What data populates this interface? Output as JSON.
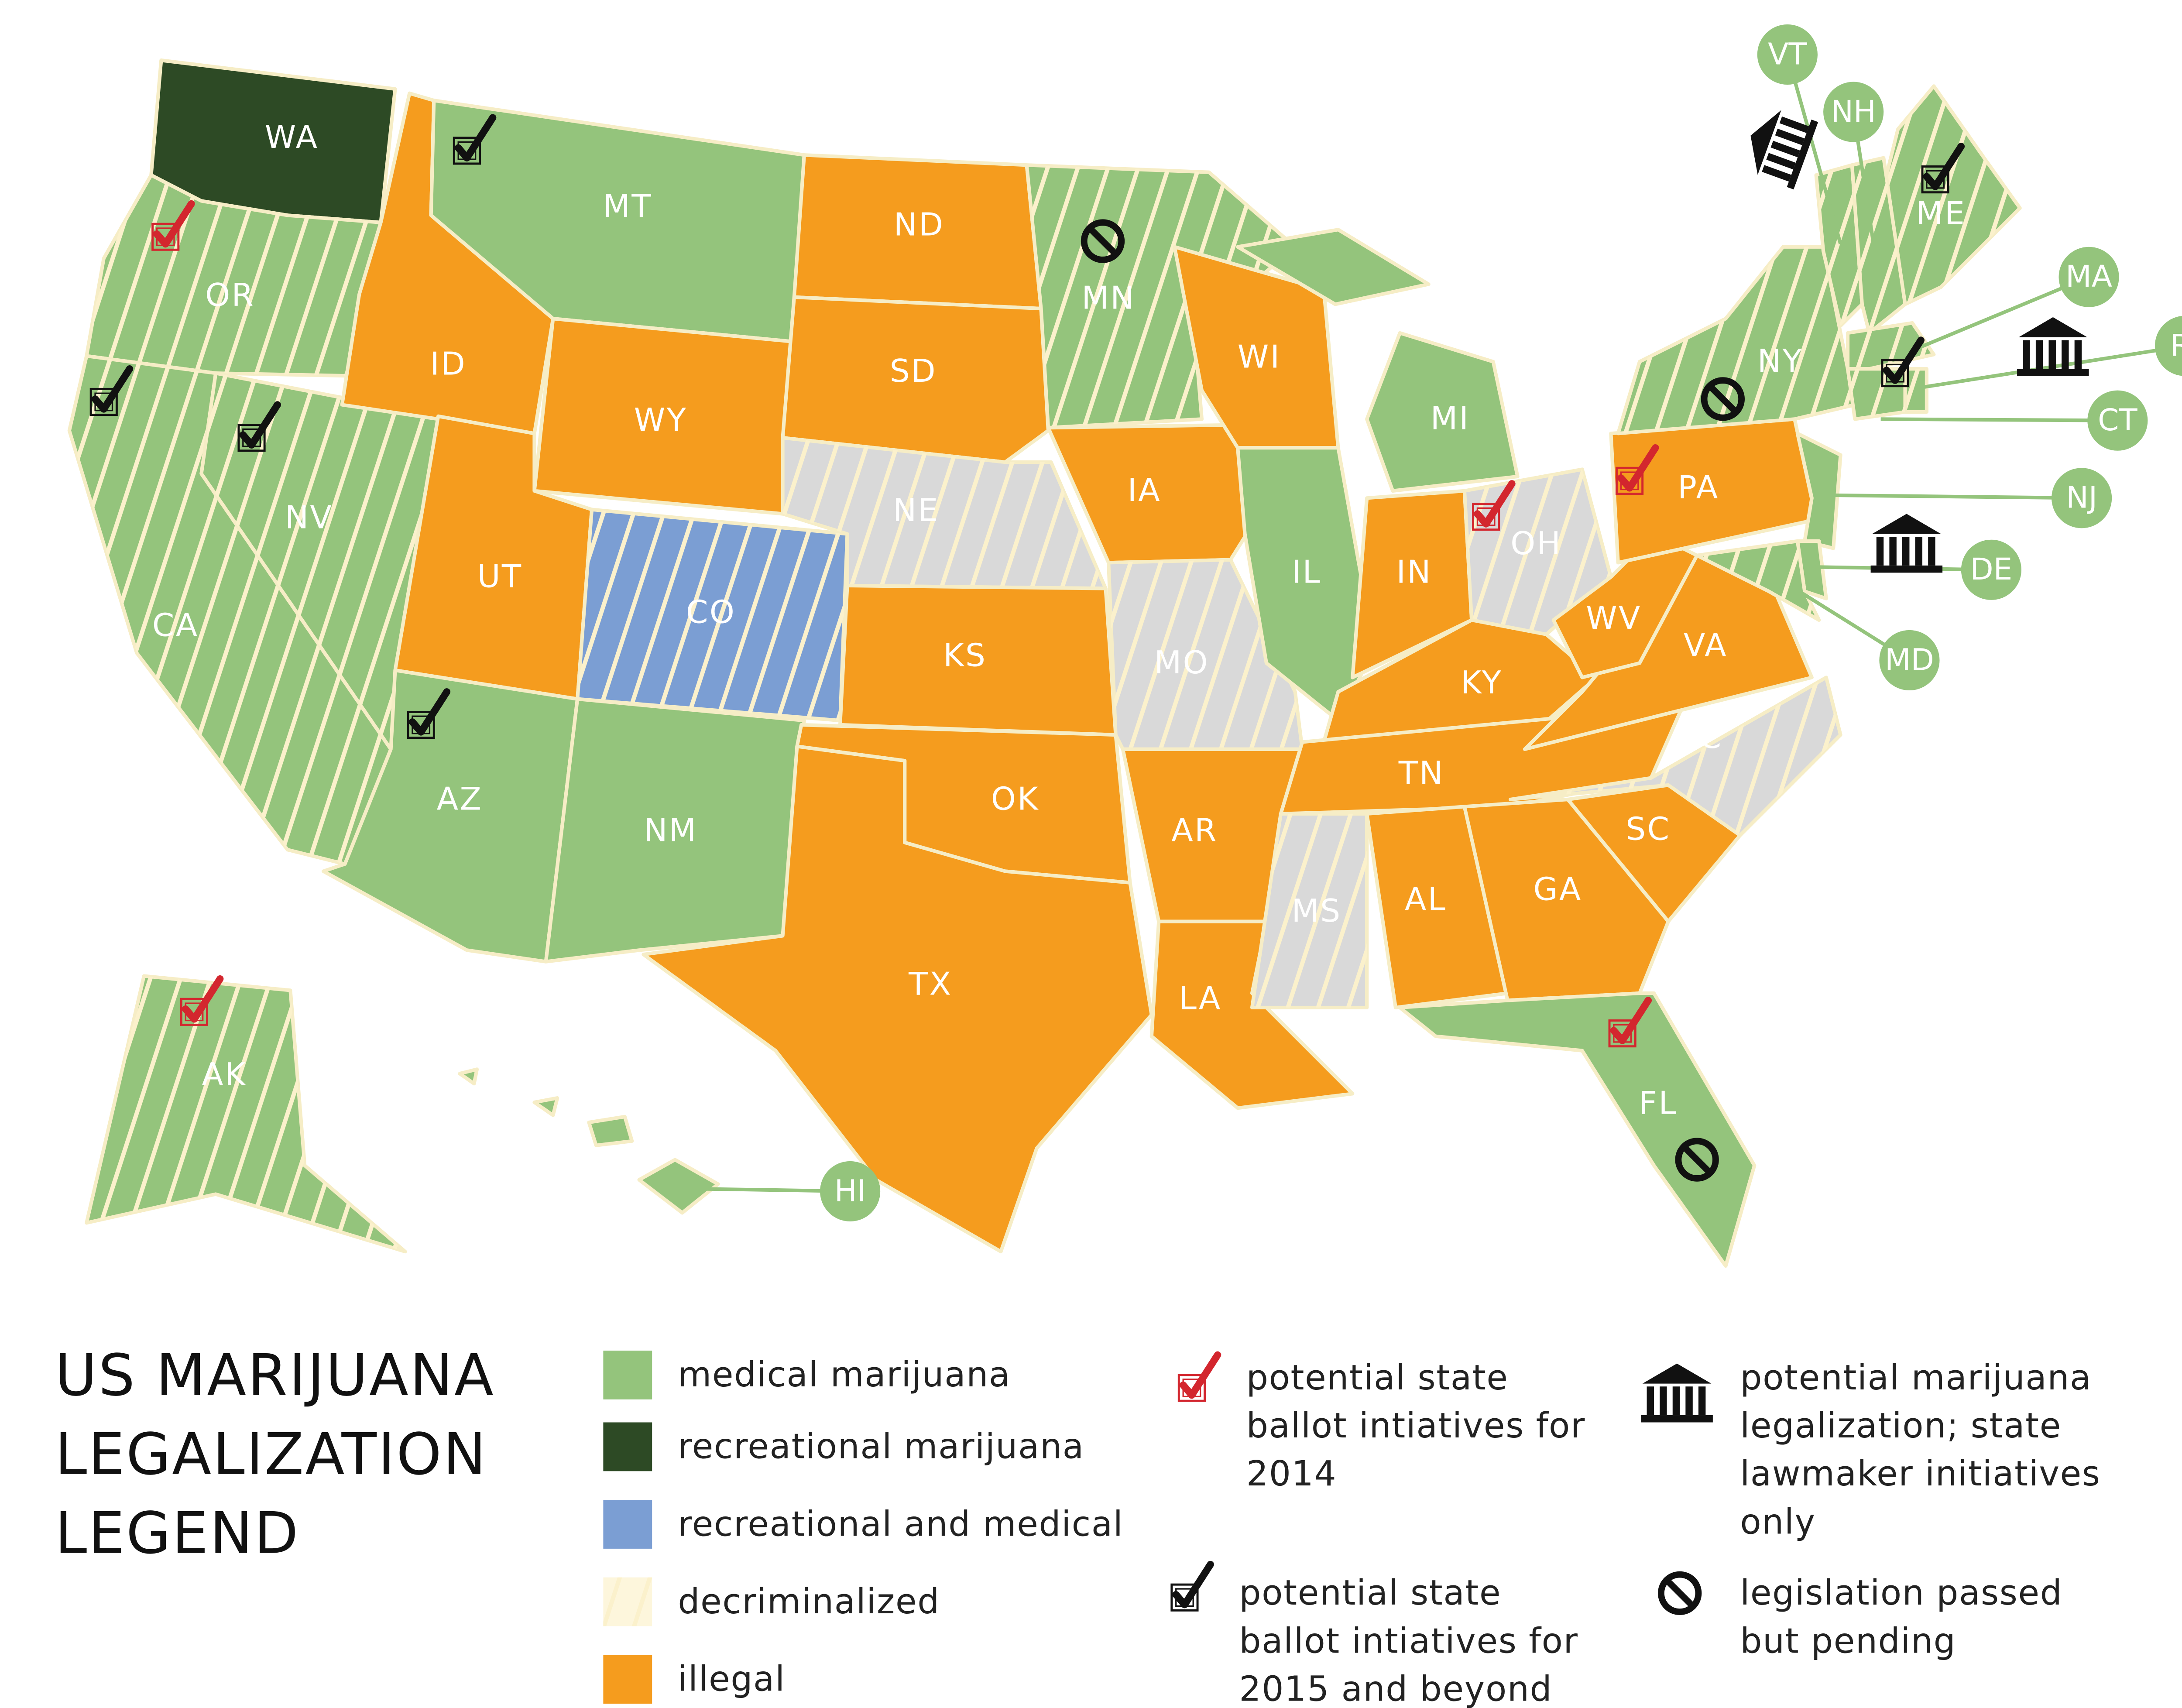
{
  "title_lines": [
    "US MARIJUANA",
    "LEGALIZATION",
    "LEGEND"
  ],
  "legend": {
    "categories": [
      {
        "label": "medical marijuana",
        "color": "#94c47c",
        "decriminalized": false
      },
      {
        "label": "recreational marijuana",
        "color": "#2d4a25",
        "decriminalized": false
      },
      {
        "label": "recreational and medical",
        "color": "#7b9ed3",
        "decriminalized": false
      },
      {
        "label": "decriminalized",
        "color": "#fdf6dc",
        "decriminalized": true
      },
      {
        "label": "illegal",
        "color": "#f59c1e",
        "decriminalized": false
      }
    ],
    "icons": [
      {
        "lines": [
          "potential state",
          "ballot intiatives for",
          "2014"
        ]
      },
      {
        "lines": [
          "potential state",
          "ballot intiatives for",
          "2015 and beyond"
        ]
      },
      {
        "lines": [
          "potential marijuana",
          "legalization; state",
          "lawmaker initiatives",
          "only"
        ]
      },
      {
        "lines": [
          "legislation passed",
          "but pending"
        ]
      }
    ]
  },
  "states": [
    {
      "label": "WA",
      "color": "#2d4a25",
      "decriminalized": false
    },
    {
      "label": "OR",
      "color": "#94c47c",
      "decriminalized": true
    },
    {
      "label": "CA",
      "color": "#94c47c",
      "decriminalized": true
    },
    {
      "label": "NV",
      "color": "#94c47c",
      "decriminalized": true
    },
    {
      "label": "ID",
      "color": "#f59c1e",
      "decriminalized": false
    },
    {
      "label": "MT",
      "color": "#94c47c",
      "decriminalized": false
    },
    {
      "label": "WY",
      "color": "#f59c1e",
      "decriminalized": false
    },
    {
      "label": "UT",
      "color": "#f59c1e",
      "decriminalized": false
    },
    {
      "label": "CO",
      "color": "#7b9ed3",
      "decriminalized": true
    },
    {
      "label": "AZ",
      "color": "#94c47c",
      "decriminalized": false
    },
    {
      "label": "NM",
      "color": "#94c47c",
      "decriminalized": false
    },
    {
      "label": "ND",
      "color": "#f59c1e",
      "decriminalized": false
    },
    {
      "label": "SD",
      "color": "#f59c1e",
      "decriminalized": false
    },
    {
      "label": "NE",
      "color": "#d9d9d9",
      "decriminalized": true
    },
    {
      "label": "KS",
      "color": "#f59c1e",
      "decriminalized": false
    },
    {
      "label": "OK",
      "color": "#f59c1e",
      "decriminalized": false
    },
    {
      "label": "TX",
      "color": "#f59c1e",
      "decriminalized": false
    },
    {
      "label": "MN",
      "color": "#94c47c",
      "decriminalized": true
    },
    {
      "label": "IA",
      "color": "#f59c1e",
      "decriminalized": false
    },
    {
      "label": "MO",
      "color": "#d9d9d9",
      "decriminalized": true
    },
    {
      "label": "AR",
      "color": "#f59c1e",
      "decriminalized": false
    },
    {
      "label": "LA",
      "color": "#f59c1e",
      "decriminalized": false
    },
    {
      "label": "WI",
      "color": "#f59c1e",
      "decriminalized": false
    },
    {
      "label": "IL",
      "color": "#94c47c",
      "decriminalized": false
    },
    {
      "label": "MI",
      "color": "#94c47c",
      "decriminalized": false
    },
    {
      "label": "IN",
      "color": "#f59c1e",
      "decriminalized": false
    },
    {
      "label": "OH",
      "color": "#d9d9d9",
      "decriminalized": true
    },
    {
      "label": "KY",
      "color": "#f59c1e",
      "decriminalized": false
    },
    {
      "label": "TN",
      "color": "#f59c1e",
      "decriminalized": false
    },
    {
      "label": "MS",
      "color": "#d9d9d9",
      "decriminalized": true
    },
    {
      "label": "AL",
      "color": "#f59c1e",
      "decriminalized": false
    },
    {
      "label": "GA",
      "color": "#f59c1e",
      "decriminalized": false
    },
    {
      "label": "FL",
      "color": "#94c47c",
      "decriminalized": false
    },
    {
      "label": "SC",
      "color": "#f59c1e",
      "decriminalized": false
    },
    {
      "label": "NC",
      "color": "#d9d9d9",
      "decriminalized": true
    },
    {
      "label": "VA",
      "color": "#f59c1e",
      "decriminalized": false
    },
    {
      "label": "WV",
      "color": "#f59c1e",
      "decriminalized": false
    },
    {
      "label": "PA",
      "color": "#f59c1e",
      "decriminalized": false
    },
    {
      "label": "NY",
      "color": "#94c47c",
      "decriminalized": true
    },
    {
      "label": "ME",
      "color": "#94c47c",
      "decriminalized": true
    },
    {
      "label": "AK",
      "color": "#94c47c",
      "decriminalized": true
    },
    {
      "label": "VT",
      "color": "#94c47c",
      "decriminalized": true
    },
    {
      "label": "NH",
      "color": "#94c47c",
      "decriminalized": true
    },
    {
      "label": "MA",
      "color": "#94c47c",
      "decriminalized": true
    },
    {
      "label": "RI",
      "color": "#94c47c",
      "decriminalized": true
    },
    {
      "label": "CT",
      "color": "#94c47c",
      "decriminalized": true
    },
    {
      "label": "NJ",
      "color": "#94c47c",
      "decriminalized": false
    },
    {
      "label": "DE",
      "color": "#94c47c",
      "decriminalized": false
    },
    {
      "label": "MD",
      "color": "#94c47c",
      "decriminalized": true
    },
    {
      "label": "HI",
      "color": "#94c47c",
      "decriminalized": false
    }
  ]
}
